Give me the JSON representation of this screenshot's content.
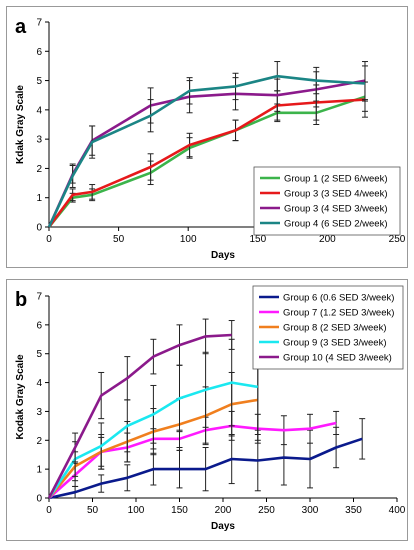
{
  "chart_data": [
    {
      "panel_label": "a",
      "type": "line",
      "xlabel": "Days",
      "ylabel": "Kdak Gray Scale",
      "xlim": [
        0,
        250
      ],
      "ylim": [
        0,
        7
      ],
      "xticks": [
        "0",
        "50",
        "100",
        "150",
        "200",
        "250"
      ],
      "yticks": [
        "0",
        "1",
        "2",
        "3",
        "4",
        "5",
        "6",
        "7"
      ],
      "grid": false,
      "legend_position": "bottom-right",
      "series": [
        {
          "name": "Group 1 (2 SED 6/week)",
          "color": "#3cb44b",
          "x": [
            0,
            17,
            31,
            73,
            101,
            134,
            164,
            192,
            227
          ],
          "y": [
            0,
            1.0,
            1.1,
            1.85,
            2.7,
            3.3,
            3.9,
            3.9,
            4.45
          ],
          "err": [
            0,
            0.15,
            0.2,
            0.4,
            0.35,
            0.35,
            0.3,
            0.4,
            0.5
          ]
        },
        {
          "name": "Group 3 (3 SED 4/week)",
          "color": "#e6191b",
          "x": [
            0,
            17,
            31,
            73,
            101,
            134,
            164,
            192,
            227
          ],
          "y": [
            0,
            1.1,
            1.2,
            2.05,
            2.8,
            3.3,
            4.15,
            4.25,
            4.35
          ],
          "err": [
            0,
            0.2,
            0.25,
            0.45,
            0.4,
            0.35,
            0.5,
            0.6,
            0.6
          ]
        },
        {
          "name": "Group 3 (4 SED 3/week)",
          "color": "#8b1a8b",
          "x": [
            0,
            17,
            31,
            73,
            101,
            134,
            164,
            192,
            227
          ],
          "y": [
            0,
            1.8,
            2.95,
            4.15,
            4.45,
            4.55,
            4.5,
            4.7,
            5.0
          ],
          "err": [
            0,
            0.3,
            0.5,
            0.6,
            0.55,
            0.55,
            0.55,
            0.6,
            0.65
          ]
        },
        {
          "name": "Group 4 (6 SED 2/week)",
          "color": "#1b8585",
          "x": [
            0,
            17,
            31,
            73,
            101,
            134,
            164,
            192,
            227
          ],
          "y": [
            0,
            1.75,
            2.9,
            3.8,
            4.65,
            4.8,
            5.15,
            5.0,
            4.9
          ],
          "err": [
            0,
            0.4,
            0.55,
            0.55,
            0.45,
            0.45,
            0.5,
            0.45,
            0.6
          ]
        }
      ]
    },
    {
      "panel_label": "b",
      "type": "line",
      "xlabel": "Days",
      "ylabel": "Kodak Gray Scale",
      "xlim": [
        0,
        400
      ],
      "ylim": [
        0,
        7
      ],
      "xticks": [
        "0",
        "50",
        "100",
        "150",
        "200",
        "250",
        "300",
        "350",
        "400"
      ],
      "yticks": [
        "0",
        "1",
        "2",
        "3",
        "4",
        "5",
        "6",
        "7"
      ],
      "grid": false,
      "legend_position": "top-right",
      "series": [
        {
          "name": "Group 6 (0.6 SED 3/week)",
          "color": "#0a1a8c",
          "x": [
            0,
            30,
            60,
            90,
            120,
            150,
            180,
            210,
            240,
            270,
            300,
            330,
            360
          ],
          "y": [
            0,
            0.2,
            0.5,
            0.7,
            1.0,
            1.0,
            1.0,
            1.35,
            1.3,
            1.4,
            1.35,
            1.75,
            2.05
          ],
          "err": [
            0,
            0.2,
            0.3,
            0.45,
            0.55,
            0.65,
            0.75,
            0.85,
            1.05,
            0.95,
            1.0,
            0.7,
            0.7
          ]
        },
        {
          "name": "Group 7 (1.2 SED 3/week)",
          "color": "#ff1aff",
          "x": [
            0,
            30,
            60,
            90,
            120,
            150,
            180,
            210,
            240,
            270,
            300,
            330
          ],
          "y": [
            0,
            0.8,
            1.6,
            1.75,
            2.05,
            2.05,
            2.35,
            2.5,
            2.4,
            2.35,
            2.4,
            2.6
          ],
          "err": [
            0,
            0.4,
            0.5,
            0.5,
            0.35,
            0.3,
            0.45,
            0.5,
            0.5,
            0.5,
            0.5,
            0.4
          ]
        },
        {
          "name": "Group 8 (2 SED 3/week)",
          "color": "#f07f1e",
          "x": [
            0,
            30,
            60,
            90,
            120,
            150,
            180,
            210,
            240
          ],
          "y": [
            0,
            1.1,
            1.6,
            1.95,
            2.3,
            2.55,
            2.85,
            3.25,
            3.4
          ],
          "err": [
            0,
            0.5,
            0.6,
            0.7,
            0.8,
            0.9,
            1.0,
            1.1,
            1.2
          ]
        },
        {
          "name": "Group 9 (3 SED 3/week)",
          "color": "#1ae8f0",
          "x": [
            0,
            30,
            60,
            90,
            120,
            150,
            180,
            210,
            240
          ],
          "y": [
            0,
            1.35,
            1.8,
            2.5,
            2.9,
            3.45,
            3.75,
            4.0,
            3.85
          ],
          "err": [
            0,
            0.6,
            0.8,
            0.9,
            1.0,
            1.15,
            1.3,
            1.5,
            1.85
          ]
        },
        {
          "name": "Group 10 (4 SED 3/week)",
          "color": "#8b1a8b",
          "x": [
            0,
            30,
            60,
            90,
            120,
            150,
            180,
            210
          ],
          "y": [
            0,
            1.75,
            3.55,
            4.15,
            4.9,
            5.3,
            5.6,
            5.65
          ],
          "err": [
            0,
            0.5,
            0.8,
            0.75,
            0.6,
            0.7,
            0.6,
            0.5
          ]
        }
      ]
    }
  ]
}
